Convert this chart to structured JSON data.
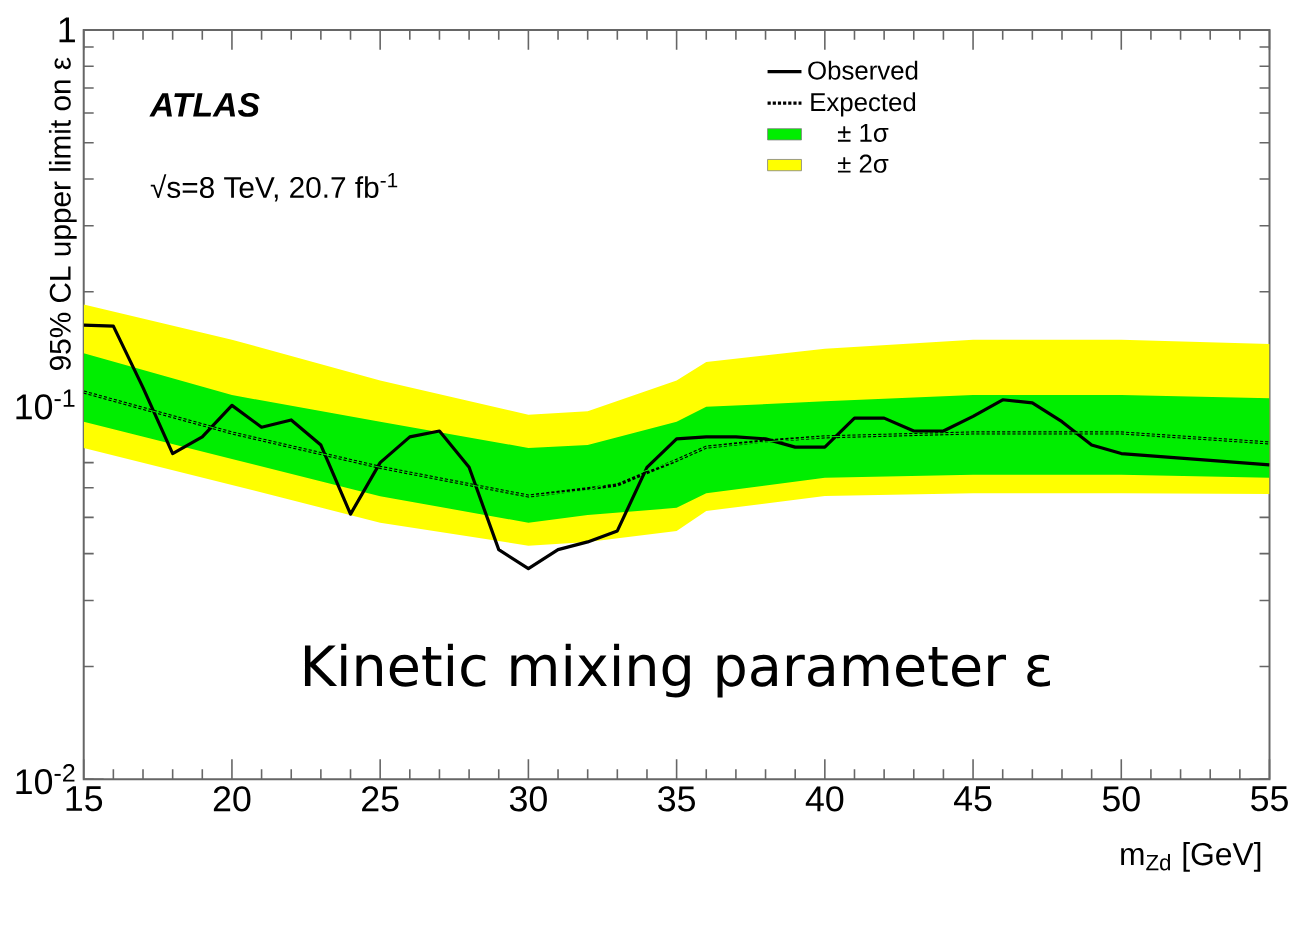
{
  "chart_data": {
    "type": "line",
    "xlabel": "m$_{Zd}$ [GeV]",
    "ylabel": "95% CL upper limit on ε",
    "annotations": [
      "ATLAS",
      "√s=8 TeV, 20.7 fb$^{-1}$",
      "Kinetic mixing parameter ε"
    ],
    "xlim": [
      15,
      55
    ],
    "xticks": [
      15,
      20,
      25,
      30,
      35,
      40,
      45,
      50,
      55
    ],
    "ylim": [
      0.01,
      1
    ],
    "yticks": [
      {
        "value": 0.01,
        "label": "10$^{-2}$"
      },
      {
        "value": 0.1,
        "label": "10$^{-1}$"
      },
      {
        "value": 1,
        "label": "1"
      }
    ],
    "log": "y",
    "legend": "top right",
    "marker": "none",
    "series": [
      {
        "name": "Observed",
        "type": "line",
        "color": "#000000",
        "line_style": "solid",
        "x": [
          15,
          16,
          17,
          18,
          19,
          20,
          21,
          22,
          23,
          24,
          25,
          26,
          27,
          28,
          29,
          30,
          31,
          32,
          33,
          34,
          35,
          36,
          37,
          38,
          39,
          40,
          41,
          42,
          43,
          44,
          45,
          46,
          47,
          48,
          49,
          50,
          55
        ],
        "values": [
          0.163,
          0.162,
          0.111,
          0.074,
          0.082,
          0.0995,
          0.087,
          0.091,
          0.078,
          0.051,
          0.07,
          0.082,
          0.085,
          0.068,
          0.041,
          0.0365,
          0.041,
          0.043,
          0.046,
          0.068,
          0.081,
          0.082,
          0.082,
          0.081,
          0.077,
          0.077,
          0.092,
          0.092,
          0.085,
          0.085,
          0.093,
          0.103,
          0.101,
          0.09,
          0.078,
          0.074,
          0.069
        ]
      },
      {
        "name": "Expected",
        "type": "line",
        "color": "#000000",
        "line_style": "dotted",
        "x": [
          15,
          20,
          25,
          30,
          33,
          35,
          36,
          38,
          40,
          45,
          50,
          55
        ],
        "values": [
          0.108,
          0.084,
          0.068,
          0.057,
          0.061,
          0.071,
          0.077,
          0.08,
          0.082,
          0.084,
          0.084,
          0.079
        ]
      },
      {
        "name": "± 1σ",
        "type": "line",
        "color": "#00ee00",
        "x": [
          15,
          20,
          25,
          30,
          32,
          35,
          36,
          40,
          45,
          50,
          55
        ],
        "values": [
          0.108,
          0.084,
          0.068,
          0.057,
          0.059,
          0.071,
          0.077,
          0.082,
          0.084,
          0.084,
          0.079
        ],
        "lower": [
          0.09,
          0.0716,
          0.0569,
          0.0484,
          0.0507,
          0.053,
          0.058,
          0.0638,
          0.065,
          0.065,
          0.0638
        ],
        "upper": [
          0.137,
          0.106,
          0.09,
          0.0766,
          0.078,
          0.09,
          0.0986,
          0.102,
          0.106,
          0.106,
          0.104
        ]
      },
      {
        "name": "± 2σ",
        "type": "line",
        "color": "#ffff00",
        "x": [
          15,
          20,
          25,
          30,
          32,
          35,
          36,
          40,
          45,
          50,
          55
        ],
        "values": [
          null,
          null,
          null,
          null,
          null,
          null,
          null,
          null,
          null,
          null,
          null
        ],
        "lower": [
          0.0766,
          0.061,
          0.0484,
          0.042,
          0.043,
          0.046,
          0.052,
          0.057,
          0.058,
          0.058,
          0.0577
        ],
        "upper": [
          0.185,
          0.149,
          0.116,
          0.094,
          0.096,
          0.116,
          0.13,
          0.141,
          0.149,
          0.149,
          0.145
        ]
      }
    ]
  }
}
